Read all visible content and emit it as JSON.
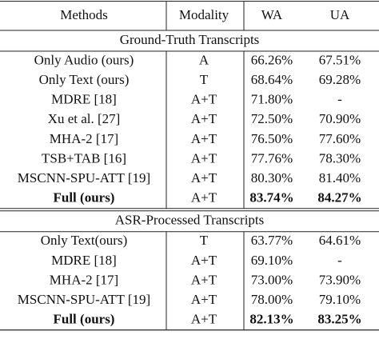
{
  "table": {
    "header": [
      "Methods",
      "Modality",
      "WA",
      "UA"
    ],
    "sections": [
      {
        "title": "Ground-Truth Transcripts",
        "rows": [
          [
            "Only Audio (ours)",
            "A",
            "66.26%",
            "67.51%"
          ],
          [
            "Only Text (ours)",
            "T",
            "68.64%",
            "69.28%"
          ],
          [
            "MDRE [18]",
            "A+T",
            "71.80%",
            "-"
          ],
          [
            "Xu et al. [27]",
            "A+T",
            "72.50%",
            "70.90%"
          ],
          [
            "MHA-2 [17]",
            "A+T",
            "76.50%",
            "77.60%"
          ],
          [
            "TSB+TAB [16]",
            "A+T",
            "77.76%",
            "78.30%"
          ],
          [
            "MSCNN-SPU-ATT [19]",
            "A+T",
            "80.30%",
            "81.40%"
          ],
          [
            "Full (ours)",
            "A+T",
            "83.74%",
            "84.27%"
          ]
        ],
        "bold_rows": [
          7
        ]
      },
      {
        "title": "ASR-Processed Transcripts",
        "rows": [
          [
            "Only Text(ours)",
            "T",
            "63.77%",
            "64.61%"
          ],
          [
            "MDRE [18]",
            "A+T",
            "69.10%",
            "-"
          ],
          [
            "MHA-2 [17]",
            "A+T",
            "73.00%",
            "73.90%"
          ],
          [
            "MSCNN-SPU-ATT [19]",
            "A+T",
            "78.00%",
            "79.10%"
          ],
          [
            "Full (ours)",
            "A+T",
            "82.13%",
            "83.25%"
          ]
        ],
        "bold_rows": [
          4
        ]
      }
    ]
  }
}
